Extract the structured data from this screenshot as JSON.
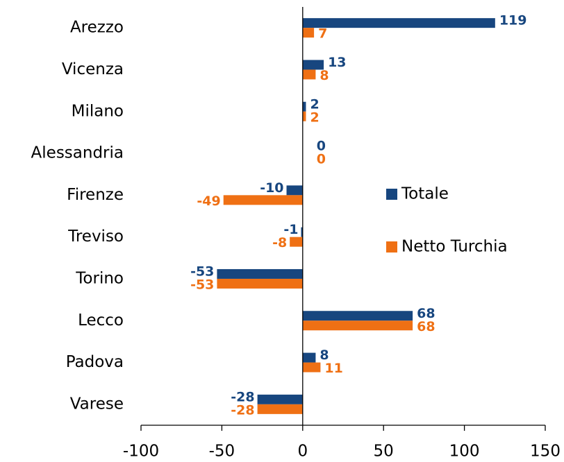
{
  "chart_data": {
    "type": "bar",
    "orientation": "horizontal",
    "categories": [
      "Arezzo",
      "Vicenza",
      "Milano",
      "Alessandria",
      "Firenze",
      "Treviso",
      "Torino",
      "Lecco",
      "Padova",
      "Varese"
    ],
    "series": [
      {
        "name": "Totale",
        "color": "#17467f",
        "values": [
          119,
          13,
          2,
          0,
          -10,
          -1,
          -53,
          68,
          8,
          -28
        ]
      },
      {
        "name": "Netto Turchia",
        "color": "#ef7014",
        "values": [
          7,
          8,
          2,
          0,
          -49,
          -8,
          -53,
          68,
          11,
          -28
        ]
      }
    ],
    "xlim": [
      -100,
      150
    ],
    "xticks": [
      -100,
      -50,
      0,
      50,
      100,
      150
    ],
    "legend": "right",
    "data_labels": true
  }
}
